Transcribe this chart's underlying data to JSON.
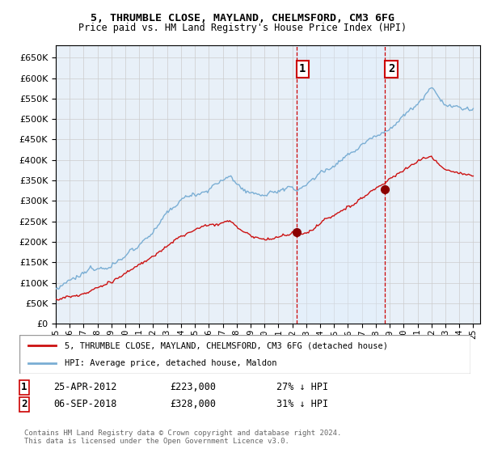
{
  "title": "5, THRUMBLE CLOSE, MAYLAND, CHELMSFORD, CM3 6FG",
  "subtitle": "Price paid vs. HM Land Registry's House Price Index (HPI)",
  "legend_line1": "5, THRUMBLE CLOSE, MAYLAND, CHELMSFORD, CM3 6FG (detached house)",
  "legend_line2": "HPI: Average price, detached house, Maldon",
  "annotation1": {
    "label": "1",
    "date": "25-APR-2012",
    "price": "£223,000",
    "note": "27% ↓ HPI",
    "year": 2012.3
  },
  "annotation2": {
    "label": "2",
    "date": "06-SEP-2018",
    "price": "£328,000",
    "note": "31% ↓ HPI",
    "year": 2018.67
  },
  "footer": "Contains HM Land Registry data © Crown copyright and database right 2024.\nThis data is licensed under the Open Government Licence v3.0.",
  "hpi_color": "#7aaed4",
  "price_color": "#cc1111",
  "annotation_color": "#cc0000",
  "shade_color": "#ddeeff",
  "background_color": "#e8f0f8",
  "ylim": [
    0,
    680000
  ],
  "yticks": [
    0,
    50000,
    100000,
    150000,
    200000,
    250000,
    300000,
    350000,
    400000,
    450000,
    500000,
    550000,
    600000,
    650000
  ],
  "x_start_year": 1995,
  "x_end_year": 2025,
  "sale1_price": 223000,
  "sale2_price": 328000
}
